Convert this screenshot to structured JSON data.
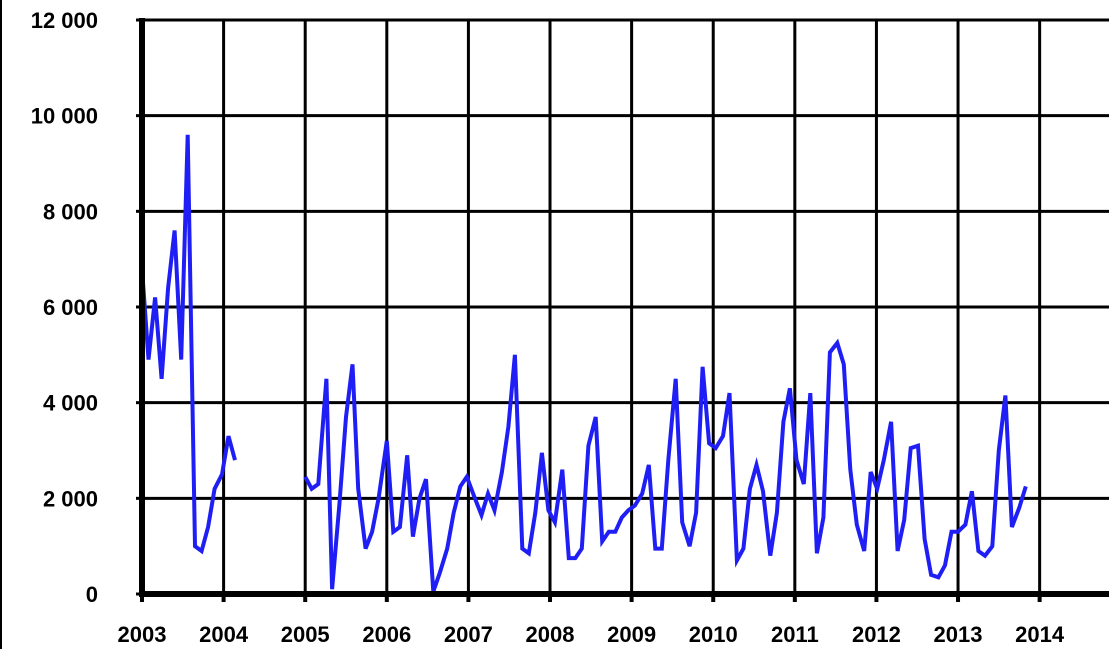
{
  "chart_data": {
    "type": "line",
    "title": "",
    "xlabel": "",
    "ylabel": "",
    "xlim": [
      2003,
      2014.85
    ],
    "ylim": [
      0,
      12000
    ],
    "x_ticks": [
      {
        "value": 2003,
        "label": "2003"
      },
      {
        "value": 2004,
        "label": "2004"
      },
      {
        "value": 2005,
        "label": "2005"
      },
      {
        "value": 2006,
        "label": "2006"
      },
      {
        "value": 2007,
        "label": "2007"
      },
      {
        "value": 2008,
        "label": "2008"
      },
      {
        "value": 2009,
        "label": "2009"
      },
      {
        "value": 2010,
        "label": "2010"
      },
      {
        "value": 2011,
        "label": "2011"
      },
      {
        "value": 2012,
        "label": "2012"
      },
      {
        "value": 2013,
        "label": "2013"
      },
      {
        "value": 2014,
        "label": "2014"
      }
    ],
    "y_ticks": [
      {
        "value": 0,
        "label": "0"
      },
      {
        "value": 2000,
        "label": "2 000"
      },
      {
        "value": 4000,
        "label": "4 000"
      },
      {
        "value": 6000,
        "label": "6 000"
      },
      {
        "value": 8000,
        "label": "8 000"
      },
      {
        "value": 10000,
        "label": "10 000"
      },
      {
        "value": 12000,
        "label": "12 000"
      }
    ],
    "grid": true,
    "line_color": "#1f1ff5",
    "series": [
      {
        "segments": [
          [
            [
              2003.0,
              6800
            ],
            [
              2003.08,
              4900
            ],
            [
              2003.16,
              6200
            ],
            [
              2003.24,
              4500
            ],
            [
              2003.32,
              6400
            ],
            [
              2003.4,
              7600
            ],
            [
              2003.48,
              4900
            ],
            [
              2003.56,
              9600
            ],
            [
              2003.65,
              1000
            ],
            [
              2003.73,
              900
            ],
            [
              2003.81,
              1400
            ],
            [
              2003.89,
              2200
            ],
            [
              2003.98,
              2500
            ],
            [
              2004.06,
              3300
            ],
            [
              2004.14,
              2800
            ]
          ],
          [
            [
              2005.0,
              2450
            ],
            [
              2005.08,
              2200
            ],
            [
              2005.16,
              2300
            ],
            [
              2005.26,
              4500
            ],
            [
              2005.33,
              100
            ],
            [
              2005.42,
              1900
            ],
            [
              2005.5,
              3700
            ],
            [
              2005.58,
              4800
            ],
            [
              2005.65,
              2200
            ],
            [
              2005.74,
              950
            ],
            [
              2005.82,
              1300
            ],
            [
              2005.9,
              2000
            ],
            [
              2006.0,
              3200
            ],
            [
              2006.08,
              1300
            ],
            [
              2006.16,
              1400
            ],
            [
              2006.25,
              2900
            ],
            [
              2006.32,
              1200
            ],
            [
              2006.4,
              2000
            ],
            [
              2006.48,
              2400
            ],
            [
              2006.57,
              50
            ],
            [
              2006.65,
              450
            ],
            [
              2006.74,
              950
            ],
            [
              2006.82,
              1700
            ],
            [
              2006.9,
              2250
            ],
            [
              2006.98,
              2450
            ],
            [
              2007.08,
              2000
            ],
            [
              2007.16,
              1650
            ],
            [
              2007.24,
              2100
            ],
            [
              2007.32,
              1750
            ],
            [
              2007.41,
              2550
            ],
            [
              2007.49,
              3500
            ],
            [
              2007.57,
              5000
            ],
            [
              2007.66,
              950
            ],
            [
              2007.74,
              850
            ],
            [
              2007.82,
              1700
            ],
            [
              2007.9,
              2950
            ],
            [
              2007.98,
              1750
            ],
            [
              2008.06,
              1500
            ],
            [
              2008.15,
              2600
            ],
            [
              2008.23,
              750
            ],
            [
              2008.31,
              750
            ],
            [
              2008.39,
              950
            ],
            [
              2008.47,
              3100
            ],
            [
              2008.56,
              3700
            ],
            [
              2008.64,
              1100
            ],
            [
              2008.72,
              1300
            ],
            [
              2008.8,
              1300
            ],
            [
              2008.88,
              1600
            ],
            [
              2008.96,
              1750
            ],
            [
              2009.04,
              1850
            ],
            [
              2009.13,
              2100
            ],
            [
              2009.21,
              2700
            ],
            [
              2009.29,
              950
            ],
            [
              2009.37,
              950
            ],
            [
              2009.45,
              2800
            ],
            [
              2009.54,
              4500
            ],
            [
              2009.62,
              1500
            ],
            [
              2009.71,
              1000
            ],
            [
              2009.79,
              1700
            ],
            [
              2009.87,
              4750
            ],
            [
              2009.95,
              3150
            ],
            [
              2010.03,
              3050
            ],
            [
              2010.12,
              3300
            ],
            [
              2010.2,
              4200
            ],
            [
              2010.29,
              700
            ],
            [
              2010.37,
              950
            ],
            [
              2010.45,
              2200
            ],
            [
              2010.53,
              2700
            ],
            [
              2010.61,
              2150
            ],
            [
              2010.7,
              800
            ],
            [
              2010.78,
              1700
            ],
            [
              2010.86,
              3600
            ],
            [
              2010.94,
              4300
            ],
            [
              2011.02,
              2800
            ],
            [
              2011.11,
              2300
            ],
            [
              2011.19,
              4200
            ],
            [
              2011.27,
              850
            ],
            [
              2011.35,
              1600
            ],
            [
              2011.43,
              5050
            ],
            [
              2011.52,
              5250
            ],
            [
              2011.6,
              4800
            ],
            [
              2011.68,
              2600
            ],
            [
              2011.76,
              1450
            ],
            [
              2011.85,
              900
            ],
            [
              2011.93,
              2550
            ],
            [
              2012.01,
              2200
            ],
            [
              2012.09,
              2800
            ],
            [
              2012.18,
              3600
            ],
            [
              2012.26,
              900
            ],
            [
              2012.34,
              1550
            ],
            [
              2012.42,
              3050
            ],
            [
              2012.51,
              3100
            ],
            [
              2012.59,
              1150
            ],
            [
              2012.67,
              400
            ],
            [
              2012.76,
              350
            ],
            [
              2012.84,
              600
            ],
            [
              2012.92,
              1300
            ],
            [
              2013.0,
              1300
            ],
            [
              2013.09,
              1450
            ],
            [
              2013.17,
              2150
            ],
            [
              2013.25,
              900
            ],
            [
              2013.33,
              800
            ],
            [
              2013.42,
              1000
            ],
            [
              2013.5,
              3000
            ],
            [
              2013.58,
              4150
            ],
            [
              2013.66,
              1400
            ],
            [
              2013.75,
              1800
            ],
            [
              2013.83,
              2250
            ]
          ]
        ]
      }
    ]
  }
}
